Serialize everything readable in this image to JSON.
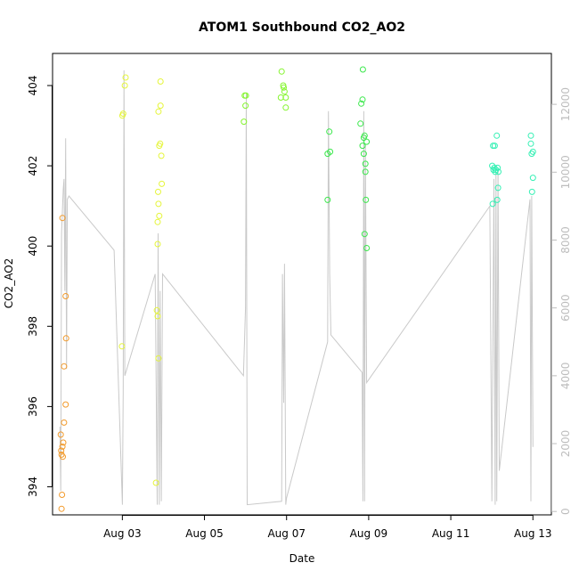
{
  "chart_data": {
    "type": "scatter",
    "title": "ATOM1 Southbound CO2_AO2",
    "xlabel": "Date",
    "ylabel": "CO2_AO2",
    "x_unit": "days since Aug 01 00:00",
    "xlim": [
      1.3,
      13.45
    ],
    "ylim": [
      393.3,
      404.8
    ],
    "ylim_right": [
      -100,
      13500
    ],
    "x_ticks": [
      {
        "value": 3,
        "label": "Aug 03"
      },
      {
        "value": 5,
        "label": "Aug 05"
      },
      {
        "value": 7,
        "label": "Aug 07"
      },
      {
        "value": 9,
        "label": "Aug 09"
      },
      {
        "value": 11,
        "label": "Aug 11"
      },
      {
        "value": 13,
        "label": "Aug 13"
      }
    ],
    "y_ticks": [
      394,
      396,
      398,
      400,
      402,
      404
    ],
    "y2_ticks": [
      0,
      2000,
      4000,
      6000,
      8000,
      10000,
      12000
    ],
    "grid": false,
    "series": [
      {
        "kind": "points",
        "points": [
          [
            1.52,
            393.45
          ],
          [
            1.53,
            393.8
          ],
          [
            1.5,
            395.3
          ],
          [
            1.51,
            394.9
          ],
          [
            1.52,
            394.8
          ],
          [
            1.54,
            395.0
          ],
          [
            1.55,
            394.75
          ],
          [
            1.56,
            395.1
          ],
          [
            1.58,
            395.6
          ],
          [
            1.58,
            397.0
          ],
          [
            1.62,
            396.05
          ],
          [
            1.63,
            397.7
          ],
          [
            1.62,
            398.75
          ],
          [
            1.54,
            400.7
          ]
        ]
      },
      {
        "kind": "points",
        "points": [
          [
            2.99,
            397.5
          ],
          [
            3.0,
            403.25
          ],
          [
            3.02,
            403.3
          ],
          [
            3.06,
            404.0
          ],
          [
            3.08,
            404.2
          ],
          [
            3.82,
            394.1
          ],
          [
            3.84,
            398.4
          ],
          [
            3.86,
            398.25
          ],
          [
            3.88,
            397.2
          ],
          [
            3.86,
            400.05
          ],
          [
            3.86,
            400.6
          ],
          [
            3.88,
            401.05
          ],
          [
            3.87,
            401.35
          ],
          [
            3.9,
            400.75
          ],
          [
            3.9,
            402.5
          ],
          [
            3.92,
            402.55
          ],
          [
            3.88,
            403.35
          ],
          [
            3.93,
            403.5
          ],
          [
            3.95,
            402.25
          ],
          [
            3.96,
            401.55
          ],
          [
            3.93,
            404.1
          ]
        ]
      },
      {
        "kind": "points",
        "points": [
          [
            5.96,
            403.1
          ],
          [
            6.0,
            403.5
          ],
          [
            5.98,
            403.75
          ],
          [
            6.01,
            403.75
          ],
          [
            6.88,
            404.35
          ],
          [
            6.86,
            403.7
          ],
          [
            6.92,
            404.0
          ],
          [
            6.95,
            403.85
          ],
          [
            6.98,
            403.7
          ],
          [
            6.93,
            403.95
          ],
          [
            6.98,
            403.45
          ]
        ]
      },
      {
        "kind": "points",
        "points": [
          [
            8.0,
            401.15
          ],
          [
            8.0,
            402.3
          ],
          [
            8.06,
            402.35
          ],
          [
            8.04,
            402.85
          ],
          [
            8.86,
            404.4
          ],
          [
            8.85,
            403.65
          ],
          [
            8.82,
            403.55
          ],
          [
            8.8,
            403.05
          ],
          [
            8.88,
            402.7
          ],
          [
            8.9,
            402.75
          ],
          [
            8.85,
            402.5
          ],
          [
            8.95,
            402.6
          ],
          [
            8.88,
            402.3
          ],
          [
            8.92,
            402.05
          ],
          [
            8.92,
            401.85
          ],
          [
            8.9,
            400.3
          ],
          [
            8.95,
            399.95
          ],
          [
            8.93,
            401.15
          ]
        ]
      },
      {
        "kind": "points",
        "points": [
          [
            12.02,
            401.05
          ],
          [
            12.04,
            401.9
          ],
          [
            12.01,
            402.0
          ],
          [
            12.06,
            401.95
          ],
          [
            12.08,
            401.85
          ],
          [
            12.03,
            402.5
          ],
          [
            12.07,
            402.5
          ],
          [
            12.12,
            402.75
          ],
          [
            12.1,
            401.9
          ],
          [
            12.14,
            401.95
          ],
          [
            12.16,
            401.85
          ],
          [
            12.13,
            401.15
          ],
          [
            12.15,
            401.45
          ],
          [
            12.95,
            402.75
          ],
          [
            12.95,
            402.55
          ],
          [
            12.97,
            402.3
          ],
          [
            13.0,
            402.35
          ],
          [
            12.98,
            401.35
          ],
          [
            13.0,
            401.7
          ]
        ]
      },
      {
        "kind": "line",
        "axis": "right",
        "points": [
          [
            1.48,
            2500
          ],
          [
            1.5,
            600
          ],
          [
            1.52,
            8200
          ],
          [
            1.56,
            9500
          ],
          [
            1.58,
            9800
          ],
          [
            1.6,
            6500
          ],
          [
            1.62,
            11000
          ],
          [
            1.64,
            4200
          ],
          [
            1.66,
            9200
          ],
          [
            1.7,
            9300
          ],
          [
            2.8,
            7700
          ],
          [
            3.0,
            200
          ],
          [
            3.02,
            3500
          ],
          [
            3.04,
            13000
          ],
          [
            3.06,
            4000
          ],
          [
            3.8,
            7000
          ],
          [
            3.85,
            200
          ],
          [
            3.87,
            8200
          ],
          [
            3.9,
            200
          ],
          [
            3.92,
            6500
          ],
          [
            3.95,
            300
          ],
          [
            3.98,
            7000
          ],
          [
            5.95,
            4000
          ],
          [
            6.0,
            6000
          ],
          [
            6.02,
            12300
          ],
          [
            6.04,
            200
          ],
          [
            6.88,
            300
          ],
          [
            6.9,
            7000
          ],
          [
            6.93,
            3200
          ],
          [
            6.95,
            7300
          ],
          [
            6.98,
            200
          ],
          [
            7.0,
            400
          ],
          [
            8.0,
            5000
          ],
          [
            8.02,
            11800
          ],
          [
            8.05,
            7000
          ],
          [
            8.08,
            5200
          ],
          [
            8.84,
            4100
          ],
          [
            8.86,
            300
          ],
          [
            8.88,
            11800
          ],
          [
            8.9,
            300
          ],
          [
            8.92,
            10800
          ],
          [
            8.95,
            3800
          ],
          [
            11.95,
            9000
          ],
          [
            12.0,
            300
          ],
          [
            12.05,
            9800
          ],
          [
            12.08,
            200
          ],
          [
            12.1,
            10000
          ],
          [
            12.12,
            300
          ],
          [
            12.15,
            10100
          ],
          [
            12.18,
            1200
          ],
          [
            12.93,
            9200
          ],
          [
            12.95,
            300
          ],
          [
            12.97,
            9300
          ],
          [
            13.0,
            1900
          ]
        ]
      }
    ]
  }
}
